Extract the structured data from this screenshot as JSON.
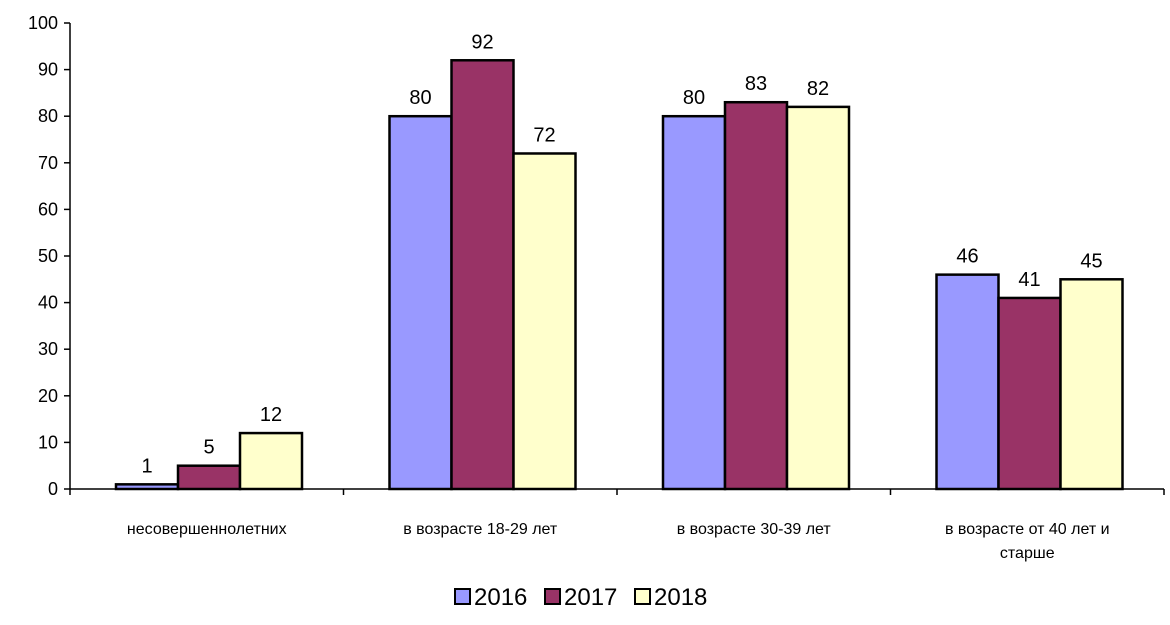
{
  "chart_data": {
    "type": "bar",
    "categories": [
      [
        "несовершеннолетних"
      ],
      [
        "в возрасте 18-29 лет"
      ],
      [
        "в возрасте 30-39 лет"
      ],
      [
        "в возрасте от 40 лет и",
        "старше"
      ]
    ],
    "series": [
      {
        "name": "2016",
        "color": "#9999ff",
        "values": [
          1,
          80,
          80,
          46
        ]
      },
      {
        "name": "2017",
        "color": "#993366",
        "values": [
          5,
          92,
          83,
          41
        ]
      },
      {
        "name": "2018",
        "color": "#ffffcc",
        "values": [
          12,
          72,
          82,
          45
        ]
      }
    ],
    "ylim": [
      0,
      100
    ],
    "yticks": [
      0,
      10,
      20,
      30,
      40,
      50,
      60,
      70,
      80,
      90,
      100
    ],
    "legend_position": "bottom",
    "grid": false
  }
}
